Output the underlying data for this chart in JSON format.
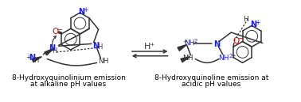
{
  "left_label_line1": "8-Hydroxyquinolinium emission",
  "left_label_line2": "at alkaline pH values",
  "right_label_line1": "8-Hydroxyquinoline emission at",
  "right_label_line2": "acidic pH values",
  "arrow_label": "H⁺",
  "bg_color": "#ffffff",
  "label_fontsize": 6.5,
  "figsize": [
    3.78,
    1.29
  ],
  "dpi": 100,
  "N_color": "#1a1aff",
  "O_color": "#cc0000",
  "bond_color": "#333333",
  "bond_lw": 1.1
}
